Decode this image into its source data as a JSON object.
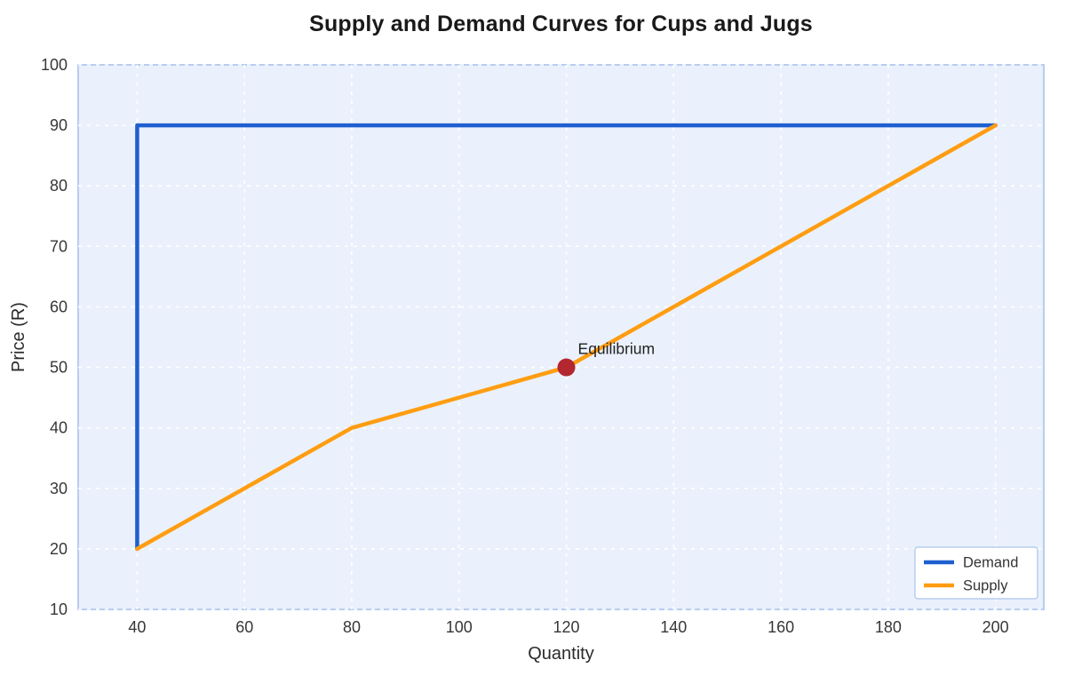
{
  "chart_data": {
    "type": "line",
    "title": "Supply and Demand Curves for Cups and Jugs",
    "xlabel": "Quantity",
    "ylabel": "Price (R)",
    "xlim": [
      29,
      209
    ],
    "ylim": [
      10,
      100
    ],
    "xticks": [
      40,
      60,
      80,
      100,
      120,
      140,
      160,
      180,
      200
    ],
    "yticks": [
      10,
      20,
      30,
      40,
      50,
      60,
      70,
      80,
      90,
      100
    ],
    "grid": "dashed",
    "series": [
      {
        "name": "Demand",
        "color": "#1e5fd0",
        "points": [
          [
            40,
            20
          ],
          [
            40,
            90
          ],
          [
            200,
            90
          ]
        ]
      },
      {
        "name": "Supply",
        "color": "#ff9d12",
        "points": [
          [
            40,
            20
          ],
          [
            80,
            40
          ],
          [
            120,
            50
          ],
          [
            200,
            90
          ]
        ]
      }
    ],
    "annotation": {
      "label": "Equilibrium",
      "x": 120,
      "y": 50,
      "dot_color": "#b22730",
      "text_color": "#222222"
    },
    "legend": {
      "position": "bottom-right",
      "entries": [
        "Demand",
        "Supply"
      ]
    },
    "colors": {
      "plot_bg": "#eaf1fc",
      "border": "#b8cdf0",
      "grid": "#ffffff",
      "tick_text": "#373737",
      "axis_label_text": "#2b2b2b"
    }
  }
}
